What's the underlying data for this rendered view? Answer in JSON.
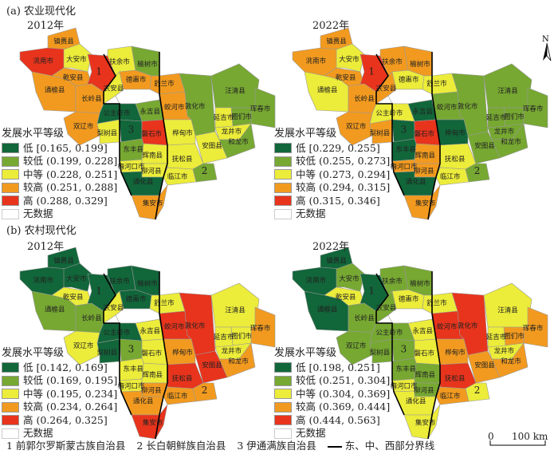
{
  "panels": [
    {
      "id": "a",
      "title": "(a) 农业现代化",
      "year": "2012年",
      "legend_title": "发展水平等级",
      "legend": [
        {
          "label": "低",
          "range": "[0.165, 0.199]"
        },
        {
          "label": "较低",
          "range": "(0.199, 0.228]"
        },
        {
          "label": "中等",
          "range": "(0.228, 0.251]"
        },
        {
          "label": "较高",
          "range": "(0.251, 0.288]"
        },
        {
          "label": "高",
          "range": "(0.288, 0.329]"
        }
      ],
      "classes": {
        "zhenlai": 3,
        "taonan": 4,
        "daan": 2,
        "qianan": 3,
        "qianguo": 4,
        "fuyu": 2,
        "yushu": 1,
        "tongyu": 3,
        "changling": 3,
        "nongan": 2,
        "dehui": 3,
        "shulan": 3,
        "jiaohe": 3,
        "dunhua": 1,
        "wangqing": 1,
        "hunchun": 1,
        "tumen": 1,
        "yanji": 2,
        "longjing": 2,
        "helong": 1,
        "antu": 2,
        "huadian": 2,
        "yongji": 1,
        "changchun": -1,
        "gongzhuling": 0,
        "shuangliao": 3,
        "lishu": 2,
        "yitong": 0,
        "panshi": 4,
        "dongfeng": 1,
        "huinan": 2,
        "meihekou": 2,
        "liuhe": 2,
        "tonghua": 0,
        "fusong": 2,
        "linjiang": 2,
        "changbai": 1,
        "jian": 3
      }
    },
    {
      "id": "a2",
      "title": "",
      "year": "2022年",
      "legend_title": "发展水平等级",
      "legend": [
        {
          "label": "低",
          "range": "[0.229, 0.255]"
        },
        {
          "label": "较低",
          "range": "(0.255, 0.273]"
        },
        {
          "label": "中等",
          "range": "(0.273, 0.294]"
        },
        {
          "label": "较高",
          "range": "(0.294, 0.315]"
        },
        {
          "label": "高",
          "range": "(0.315, 0.346]"
        }
      ],
      "classes": {
        "zhenlai": 3,
        "taonan": 3,
        "daan": 2,
        "qianan": 3,
        "qianguo": 4,
        "fuyu": 3,
        "yushu": 3,
        "tongyu": 2,
        "changling": 3,
        "nongan": 3,
        "dehui": 2,
        "shulan": 2,
        "jiaohe": 1,
        "dunhua": 1,
        "wangqing": 1,
        "hunchun": 1,
        "tumen": 1,
        "yanji": 1,
        "longjing": 1,
        "helong": 1,
        "antu": 1,
        "huadian": 0,
        "yongji": 0,
        "changchun": -1,
        "gongzhuling": 2,
        "shuangliao": 3,
        "lishu": 3,
        "yitong": 0,
        "panshi": 4,
        "dongfeng": 0,
        "huinan": 3,
        "meihekou": 3,
        "liuhe": 3,
        "tonghua": 0,
        "fusong": 2,
        "linjiang": 2,
        "changbai": 1,
        "jian": 3
      }
    },
    {
      "id": "b",
      "title": "(b) 农村现代化",
      "year": "2012年",
      "legend_title": "发展水平等级",
      "legend": [
        {
          "label": "低",
          "range": "[0.142, 0.169]"
        },
        {
          "label": "较低",
          "range": "(0.169, 0.195]"
        },
        {
          "label": "中等",
          "range": "(0.195, 0.234]"
        },
        {
          "label": "较高",
          "range": "(0.234, 0.264]"
        },
        {
          "label": "高",
          "range": "(0.264, 0.325]"
        }
      ],
      "classes": {
        "zhenlai": 0,
        "taonan": 0,
        "daan": 0,
        "qianan": 2,
        "qianguo": 0,
        "fuyu": 0,
        "yushu": 0,
        "tongyu": 1,
        "changling": 1,
        "nongan": 2,
        "dehui": 0,
        "shulan": 2,
        "jiaohe": 4,
        "dunhua": 4,
        "wangqing": 2,
        "hunchun": 3,
        "tumen": 2,
        "yanji": 2,
        "longjing": 2,
        "helong": 3,
        "antu": 4,
        "huadian": 3,
        "yongji": 2,
        "changchun": -1,
        "gongzhuling": 0,
        "shuangliao": 2,
        "lishu": 0,
        "yitong": 1,
        "panshi": 2,
        "dongfeng": 2,
        "huinan": 2,
        "meihekou": 2,
        "liuhe": 3,
        "tonghua": 3,
        "fusong": 4,
        "linjiang": 3,
        "changbai": 3,
        "jian": 4
      }
    },
    {
      "id": "b2",
      "title": "",
      "year": "2022年",
      "legend_title": "发展水平等级",
      "legend": [
        {
          "label": "低",
          "range": "[0.198, 0.251]"
        },
        {
          "label": "较低",
          "range": "(0.251, 0.304]"
        },
        {
          "label": "中等",
          "range": "(0.304, 0.369]"
        },
        {
          "label": "较高",
          "range": "(0.369, 0.444]"
        },
        {
          "label": "高",
          "range": "(0.444, 0.563]"
        }
      ],
      "classes": {
        "zhenlai": 0,
        "taonan": 0,
        "daan": 1,
        "qianan": 2,
        "qianguo": 0,
        "fuyu": 1,
        "yushu": 1,
        "tongyu": 0,
        "changling": 1,
        "nongan": 1,
        "dehui": 2,
        "shulan": 2,
        "jiaohe": 4,
        "dunhua": 4,
        "wangqing": 2,
        "hunchun": 3,
        "tumen": 3,
        "yanji": 2,
        "longjing": 2,
        "helong": 3,
        "antu": 3,
        "huadian": 3,
        "yongji": 2,
        "changchun": -1,
        "gongzhuling": 1,
        "shuangliao": 1,
        "lishu": 1,
        "yitong": 1,
        "panshi": 2,
        "dongfeng": 1,
        "huinan": 1,
        "meihekou": 2,
        "liuhe": 1,
        "tonghua": 2,
        "fusong": 4,
        "linjiang": 3,
        "changbai": 2,
        "jian": 2
      }
    }
  ],
  "no_data_label": "无数据",
  "class_colors": [
    "#11663a",
    "#77a832",
    "#ecec3a",
    "#f29a1f",
    "#e8341c"
  ],
  "no_data_color": "#ffffff",
  "regions": {
    "zhenlai": "镇赉县",
    "taonan": "洮南市",
    "daan": "大安市",
    "qianan": "乾安县",
    "qianguo": "1",
    "fuyu": "扶余市",
    "yushu": "榆树市",
    "tongyu": "通榆县",
    "changling": "长岭县",
    "nongan": "农安县",
    "dehui": "德惠市",
    "shulan": "舒兰市",
    "jiaohe": "蛟河市",
    "dunhua": "敦化市",
    "wangqing": "汪清县",
    "hunchun": "珲春市",
    "tumen": "图们市",
    "yanji": "延吉市",
    "longjing": "龙井市",
    "helong": "和龙市",
    "antu": "安图县",
    "huadian": "桦甸市",
    "yongji": "永吉县",
    "changchun": "",
    "gongzhuling": "公主岭市",
    "shuangliao": "双辽市",
    "lishu": "梨树县",
    "yitong": "3",
    "panshi": "磐石市",
    "dongfeng": "东丰县",
    "huinan": "辉南县",
    "meihekou": "梅河口市",
    "liuhe": "柳河县",
    "tonghua": "通化县",
    "fusong": "抚松县",
    "linjiang": "临江市",
    "changbai": "2",
    "jian": "集安市"
  },
  "footer": {
    "note1": "1 前郭尔罗斯蒙古族自治县",
    "note2": "2 长白朝鲜族自治县",
    "note3": "3 伊通满族自治县",
    "boundary": "东、中、西部分界线"
  },
  "scale": {
    "zero": "0",
    "label": "100 km"
  },
  "north": "N"
}
